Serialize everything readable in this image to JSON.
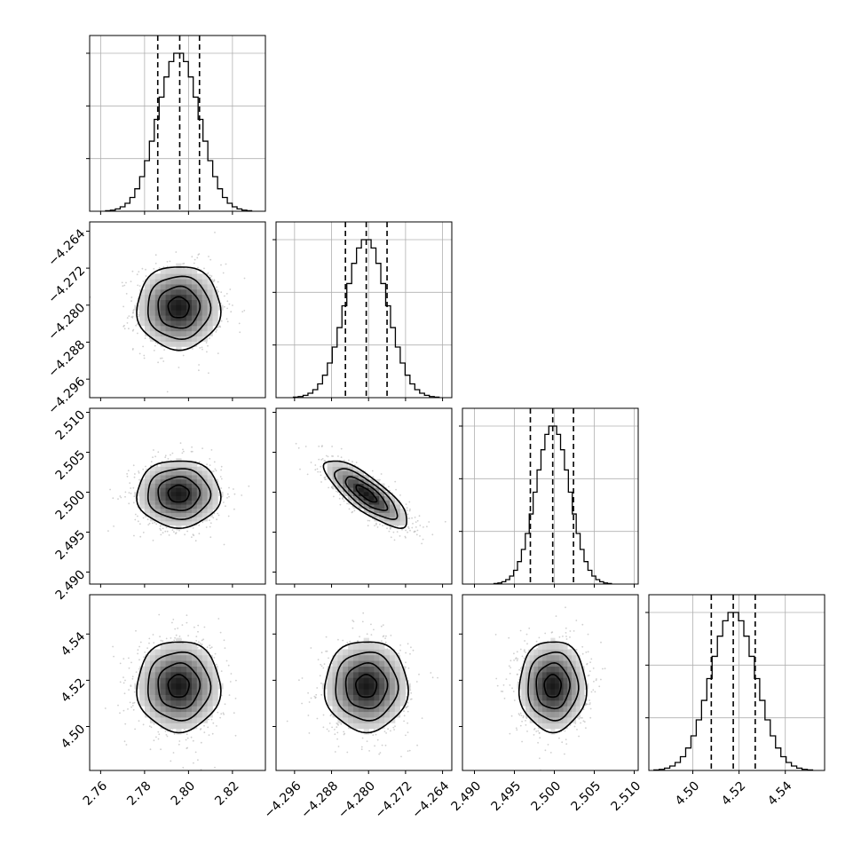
{
  "chart_data": {
    "type": "corner",
    "grid": true,
    "colors": {
      "line": "#000000",
      "grid": "#b0b0b0",
      "scatter": "#bbbbbb",
      "density_max": "#000000"
    },
    "parameters": [
      {
        "ticks": [
          2.76,
          2.78,
          2.8,
          2.82
        ],
        "tick_labels": [
          "2.76",
          "2.78",
          "2.80",
          "2.82"
        ],
        "range": [
          2.755,
          2.835
        ],
        "mean": 2.7955,
        "std": 0.0095,
        "quantiles": [
          2.786,
          2.796,
          2.805
        ]
      },
      {
        "ticks": [
          -4.296,
          -4.288,
          -4.28,
          -4.272,
          -4.264
        ],
        "tick_labels": [
          "−4.296",
          "−4.288",
          "−4.280",
          "−4.272",
          "−4.264"
        ],
        "range": [
          -4.3,
          -4.262
        ],
        "mean": -4.2805,
        "std": 0.0045,
        "quantiles": [
          -4.285,
          -4.2805,
          -4.276
        ]
      },
      {
        "ticks": [
          2.49,
          2.495,
          2.5,
          2.505,
          2.51
        ],
        "tick_labels": [
          "2.490",
          "2.495",
          "2.500",
          "2.505",
          "2.510"
        ],
        "range": [
          2.4885,
          2.5105
        ],
        "mean": 2.4998,
        "std": 0.0021,
        "quantiles": [
          2.497,
          2.4998,
          2.5024
        ]
      },
      {
        "ticks": [
          4.5,
          4.52,
          4.54
        ],
        "tick_labels": [
          "4.50",
          "4.52",
          "4.54"
        ],
        "range": [
          4.481,
          4.557
        ],
        "mean": 4.5175,
        "std": 0.0098,
        "quantiles": [
          4.508,
          4.5175,
          4.527
        ]
      }
    ],
    "correlations": {
      "2-1": -0.8,
      "1-0": 0.0,
      "2-0": 0.0,
      "3-0": 0.0,
      "3-1": 0.0,
      "3-2": 0.0
    },
    "histogram": {
      "bins": 30,
      "diag_ymax": [
        3200,
        3200,
        3200,
        3200
      ],
      "diag_yticks": [
        1000,
        2000,
        3000
      ]
    },
    "contour_levels_sigma": [
      0.5,
      1.0,
      1.5,
      2.0
    ]
  }
}
